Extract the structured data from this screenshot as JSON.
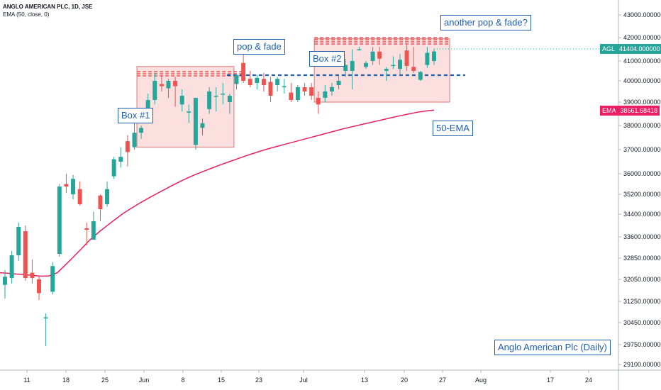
{
  "legend": {
    "line1": "ANGLO AMERICAN PLC, 1D, JSE",
    "line2": "EMA (50, close, 0)"
  },
  "annotations": {
    "box1": "Box #1",
    "pop_fade": "pop & fade",
    "box2": "Box #2",
    "another_pop": "another pop & fade?",
    "ema_label": "50-EMA",
    "title_box": "Anglo American Plc (Daily)"
  },
  "price_tags": {
    "agl": {
      "name": "AGL",
      "value": "41404.000000",
      "color": "#26a69a"
    },
    "ema": {
      "name": "EMA",
      "value": "38661.68418",
      "color": "#e91e63"
    }
  },
  "colors": {
    "up": "#26a69a",
    "down": "#ef5350",
    "ema": "#e91e63",
    "accent": "#1e5fb4",
    "box_fill": "#f9c5c5"
  },
  "chart_data": {
    "type": "candlestick",
    "symbol": "ANGLO AMERICAN PLC",
    "interval": "1D",
    "exchange": "JSE",
    "y_ticks": [
      "43000.000000",
      "42000.000000",
      "41000.000000",
      "40000.000000",
      "39000.000000",
      "38000.000000",
      "37000.000000",
      "36000.000000",
      "35200.000000",
      "34400.000000",
      "33600.000000",
      "32850.000000",
      "32050.000000",
      "31250.000000",
      "30450.000000",
      "29750.000000",
      "29100.000000"
    ],
    "x_ticks": [
      "11",
      "18",
      "25",
      "Jun",
      "8",
      "15",
      "23",
      "Jul",
      "13",
      "20",
      "27",
      "Aug",
      "17",
      "24"
    ],
    "candles": [
      {
        "o": 31850,
        "h": 32400,
        "l": 31350,
        "c": 32150
      },
      {
        "o": 32100,
        "h": 33100,
        "l": 31900,
        "c": 32950
      },
      {
        "o": 32950,
        "h": 34100,
        "l": 32750,
        "c": 33950
      },
      {
        "o": 33800,
        "h": 34000,
        "l": 32000,
        "c": 32100
      },
      {
        "o": 32300,
        "h": 32800,
        "l": 31900,
        "c": 32100
      },
      {
        "o": 32050,
        "h": 32150,
        "l": 31300,
        "c": 31550
      },
      {
        "o": 30650,
        "h": 30800,
        "l": 29700,
        "c": 30650
      },
      {
        "o": 31600,
        "h": 32700,
        "l": 31500,
        "c": 32550
      },
      {
        "o": 33000,
        "h": 35600,
        "l": 32900,
        "c": 35500
      },
      {
        "o": 35600,
        "h": 36000,
        "l": 35250,
        "c": 35500
      },
      {
        "o": 35200,
        "h": 35950,
        "l": 35000,
        "c": 35800
      },
      {
        "o": 35400,
        "h": 35700,
        "l": 34750,
        "c": 34800
      },
      {
        "o": 33900,
        "h": 34100,
        "l": 33300,
        "c": 33850
      },
      {
        "o": 33500,
        "h": 34500,
        "l": 33500,
        "c": 34150
      },
      {
        "o": 35150,
        "h": 35200,
        "l": 34150,
        "c": 34600
      },
      {
        "o": 34800,
        "h": 35700,
        "l": 34700,
        "c": 35400
      },
      {
        "o": 35900,
        "h": 36700,
        "l": 35800,
        "c": 36600
      },
      {
        "o": 36500,
        "h": 37100,
        "l": 36250,
        "c": 36700
      },
      {
        "o": 37350,
        "h": 37600,
        "l": 36300,
        "c": 36900
      },
      {
        "o": 37100,
        "h": 38100,
        "l": 37000,
        "c": 37700
      },
      {
        "o": 37700,
        "h": 38000,
        "l": 37450,
        "c": 37900
      },
      {
        "o": 38300,
        "h": 39400,
        "l": 38150,
        "c": 39100
      },
      {
        "o": 39100,
        "h": 40400,
        "l": 38900,
        "c": 40000
      },
      {
        "o": 39850,
        "h": 40300,
        "l": 39500,
        "c": 39750
      },
      {
        "o": 39650,
        "h": 40100,
        "l": 39200,
        "c": 40000
      },
      {
        "o": 40000,
        "h": 40200,
        "l": 38800,
        "c": 39750
      },
      {
        "o": 38900,
        "h": 39600,
        "l": 38600,
        "c": 39300
      },
      {
        "o": 38550,
        "h": 38900,
        "l": 38100,
        "c": 38600
      },
      {
        "o": 37200,
        "h": 39200,
        "l": 37000,
        "c": 39200
      },
      {
        "o": 37900,
        "h": 38300,
        "l": 37600,
        "c": 38100
      },
      {
        "o": 38700,
        "h": 39700,
        "l": 38500,
        "c": 39500
      },
      {
        "o": 39300,
        "h": 39700,
        "l": 38600,
        "c": 39300
      },
      {
        "o": 39400,
        "h": 39900,
        "l": 38900,
        "c": 39400
      },
      {
        "o": 39000,
        "h": 39400,
        "l": 38500,
        "c": 39300
      },
      {
        "o": 39850,
        "h": 40400,
        "l": 39600,
        "c": 40300
      },
      {
        "o": 40900,
        "h": 41300,
        "l": 39900,
        "c": 40000
      },
      {
        "o": 40100,
        "h": 40500,
        "l": 39700,
        "c": 39800
      },
      {
        "o": 39900,
        "h": 40300,
        "l": 39600,
        "c": 40150
      },
      {
        "o": 40100,
        "h": 40400,
        "l": 39500,
        "c": 39800
      },
      {
        "o": 39950,
        "h": 40200,
        "l": 39000,
        "c": 39300
      },
      {
        "o": 39800,
        "h": 40200,
        "l": 39500,
        "c": 40100
      },
      {
        "o": 39750,
        "h": 40100,
        "l": 39400,
        "c": 39750
      },
      {
        "o": 39450,
        "h": 39900,
        "l": 39000,
        "c": 39100
      },
      {
        "o": 39100,
        "h": 39800,
        "l": 39000,
        "c": 39700
      },
      {
        "o": 39700,
        "h": 39900,
        "l": 39300,
        "c": 39500
      },
      {
        "o": 39700,
        "h": 39900,
        "l": 39100,
        "c": 39300
      },
      {
        "o": 39200,
        "h": 39500,
        "l": 38500,
        "c": 38900
      },
      {
        "o": 39200,
        "h": 39800,
        "l": 39000,
        "c": 39500
      },
      {
        "o": 39500,
        "h": 39900,
        "l": 39300,
        "c": 39700
      },
      {
        "o": 39800,
        "h": 40300,
        "l": 39600,
        "c": 40000
      },
      {
        "o": 40500,
        "h": 41100,
        "l": 40200,
        "c": 40800
      },
      {
        "o": 40500,
        "h": 41500,
        "l": 39600,
        "c": 41000
      },
      {
        "o": 41500,
        "h": 41600,
        "l": 41450,
        "c": 41500
      },
      {
        "o": 40700,
        "h": 41000,
        "l": 40600,
        "c": 40900
      },
      {
        "o": 41000,
        "h": 41600,
        "l": 40800,
        "c": 41400
      },
      {
        "o": 41400,
        "h": 41600,
        "l": 40800,
        "c": 41100
      },
      {
        "o": 40500,
        "h": 40700,
        "l": 40000,
        "c": 40600
      },
      {
        "o": 40750,
        "h": 41200,
        "l": 40600,
        "c": 40800
      },
      {
        "o": 40600,
        "h": 41300,
        "l": 40300,
        "c": 41050
      },
      {
        "o": 41450,
        "h": 41700,
        "l": 40500,
        "c": 40750
      },
      {
        "o": 40700,
        "h": 41600,
        "l": 40400,
        "c": 40500
      },
      {
        "o": 40050,
        "h": 40500,
        "l": 40000,
        "c": 40450
      },
      {
        "o": 40800,
        "h": 41600,
        "l": 40650,
        "c": 41350
      },
      {
        "o": 41000,
        "h": 41500,
        "l": 40800,
        "c": 41404
      }
    ],
    "ema50": [
      32300,
      32280,
      32250,
      32230,
      32200,
      32170,
      32180,
      32300,
      32600,
      32900,
      33200,
      33500,
      33750,
      33980,
      34200,
      34420,
      34630,
      34830,
      35020,
      35200,
      35370,
      35540,
      35700,
      35850,
      35990,
      36120,
      36250,
      36380,
      36500,
      36620,
      36740,
      36850,
      36960,
      37060,
      37150,
      37240,
      37330,
      37420,
      37510,
      37600,
      37690,
      37780,
      37870,
      37950,
      38030,
      38110,
      38190,
      38270,
      38350,
      38430,
      38500,
      38570,
      38620,
      38661.68418
    ],
    "annotations": [
      "Box #1",
      "pop & fade",
      "Box #2",
      "another pop & fade?",
      "50-EMA",
      "Anglo American Plc (Daily)"
    ]
  }
}
